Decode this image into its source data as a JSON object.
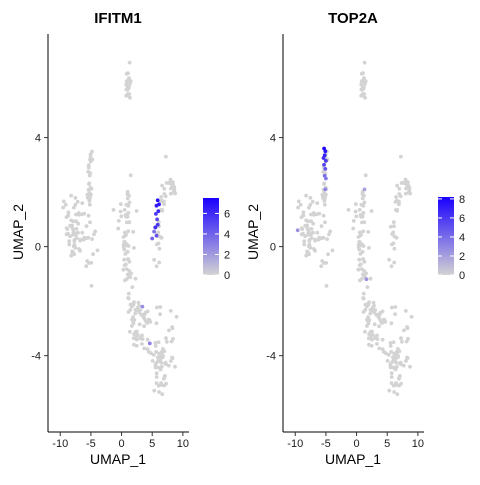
{
  "chart_data": [
    {
      "type": "scatter",
      "title": "IFITM1",
      "xlabel": "UMAP_1",
      "ylabel": "UMAP_2",
      "xlim": [
        -12,
        11
      ],
      "ylim": [
        -6.8,
        7.8
      ],
      "x_ticks": [
        -10,
        -5,
        0,
        5,
        10
      ],
      "y_ticks": [
        -4,
        0,
        4
      ],
      "grid": false,
      "legend": "right",
      "color_scale": {
        "low": "#d3d3d3",
        "high": "#1a00ff",
        "min": 0,
        "max": 7.5,
        "ticks": [
          0,
          2,
          4,
          6
        ]
      },
      "high_points": [
        {
          "x": 5.9,
          "y": 1.7,
          "v": 7.0
        },
        {
          "x": 5.7,
          "y": 1.5,
          "v": 6.5
        },
        {
          "x": 6.0,
          "y": 1.3,
          "v": 6.0
        },
        {
          "x": 5.6,
          "y": 1.2,
          "v": 5.5
        },
        {
          "x": 5.8,
          "y": 1.0,
          "v": 5.0
        },
        {
          "x": 5.9,
          "y": 0.8,
          "v": 5.5
        },
        {
          "x": 5.5,
          "y": 0.7,
          "v": 6.0
        },
        {
          "x": 5.7,
          "y": 0.4,
          "v": 4.5
        },
        {
          "x": 5.3,
          "y": 0.55,
          "v": 3.5
        },
        {
          "x": 5.0,
          "y": 0.3,
          "v": 4.0
        },
        {
          "x": 6.1,
          "y": 1.55,
          "v": 6.8
        },
        {
          "x": 4.6,
          "y": -3.55,
          "v": 3.0
        },
        {
          "x": 3.4,
          "y": -2.2,
          "v": 2.5
        }
      ]
    },
    {
      "type": "scatter",
      "title": "TOP2A",
      "xlabel": "UMAP_1",
      "ylabel": "UMAP_2",
      "xlim": [
        -12,
        11
      ],
      "ylim": [
        -6.8,
        7.8
      ],
      "x_ticks": [
        -10,
        -5,
        0,
        5,
        10
      ],
      "y_ticks": [
        -4,
        0,
        4
      ],
      "grid": false,
      "legend": "right",
      "color_scale": {
        "low": "#d3d3d3",
        "high": "#1a00ff",
        "min": 0,
        "max": 8.2,
        "ticks": [
          0,
          2,
          4,
          6,
          8
        ]
      },
      "high_points": [
        {
          "x": -5.3,
          "y": 3.6,
          "v": 8.0
        },
        {
          "x": -5.1,
          "y": 3.5,
          "v": 7.5
        },
        {
          "x": -5.2,
          "y": 3.35,
          "v": 7.0
        },
        {
          "x": -5.4,
          "y": 3.25,
          "v": 6.5
        },
        {
          "x": -5.0,
          "y": 3.15,
          "v": 6.0
        },
        {
          "x": -5.3,
          "y": 3.0,
          "v": 5.5
        },
        {
          "x": -5.1,
          "y": 2.85,
          "v": 5.0
        },
        {
          "x": -5.2,
          "y": 2.6,
          "v": 4.0
        },
        {
          "x": -5.0,
          "y": 2.5,
          "v": 3.5
        },
        {
          "x": -5.1,
          "y": 2.1,
          "v": 3.0
        },
        {
          "x": -9.6,
          "y": 0.6,
          "v": 2.5
        },
        {
          "x": 1.3,
          "y": 2.1,
          "v": 2.0
        },
        {
          "x": 1.6,
          "y": -1.2,
          "v": 2.5
        }
      ]
    }
  ]
}
